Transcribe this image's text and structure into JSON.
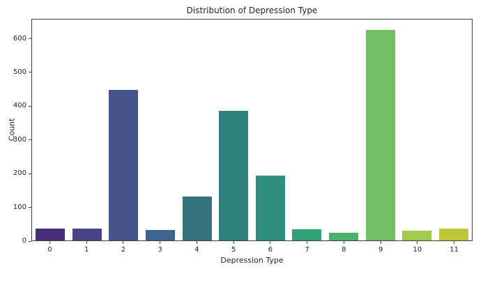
{
  "chart_data": {
    "type": "bar",
    "title": "Distribution of Depression Type",
    "xlabel": "Depression Type",
    "ylabel": "Count",
    "categories": [
      "0",
      "1",
      "2",
      "3",
      "4",
      "5",
      "6",
      "7",
      "8",
      "9",
      "10",
      "11"
    ],
    "values": [
      35,
      35,
      450,
      32,
      132,
      386,
      194,
      33,
      22,
      628,
      30,
      35
    ],
    "bar_colors": [
      "#462d79",
      "#4a4284",
      "#475389",
      "#3d648c",
      "#34747f",
      "#2f817e",
      "#2f8e7c",
      "#33a377",
      "#4bb06c",
      "#72bf66",
      "#a1ca50",
      "#bcc637"
    ],
    "yticks": [
      0,
      100,
      200,
      300,
      400,
      500,
      600
    ],
    "ylim": [
      0,
      659
    ],
    "grid": false,
    "legend": null,
    "palette_name": "viridis"
  },
  "colors": {
    "background": "#ffffff",
    "spine": "#404040",
    "text": "#262626"
  }
}
